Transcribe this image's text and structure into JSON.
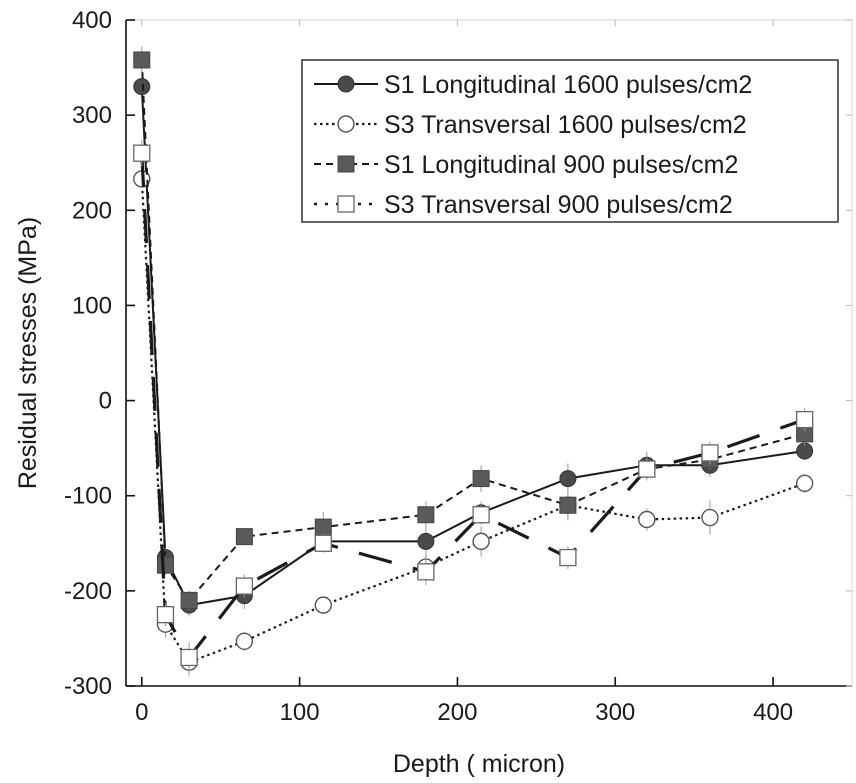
{
  "chart_data": {
    "type": "line",
    "title": "",
    "xlabel": "Depth ( micron)",
    "ylabel": "Residual stresses (MPa)",
    "xlim": [
      -10,
      450
    ],
    "ylim": [
      -300,
      400
    ],
    "xticks": [
      0,
      100,
      200,
      300,
      400
    ],
    "yticks": [
      400,
      300,
      200,
      100,
      0,
      -100,
      -200,
      -300
    ],
    "xtick_labels": [
      "0",
      "100",
      "200",
      "300",
      "400"
    ],
    "ytick_labels": [
      "400",
      "300",
      "200",
      "100",
      "0",
      "-100",
      "-200",
      "-300"
    ],
    "grid": false,
    "legend_position": "top-right",
    "series": [
      {
        "name": "S1 Longitudinal 1600 pulses/cm2",
        "marker": "filled-circle",
        "line_style": "solid",
        "x": [
          0,
          15,
          30,
          65,
          115,
          180,
          215,
          270,
          320,
          360,
          420
        ],
        "y": [
          330,
          -165,
          -215,
          -205,
          -148,
          -148,
          -118,
          -82,
          -68,
          -68,
          -53
        ],
        "err": [
          6,
          10,
          12,
          14,
          10,
          18,
          12,
          16,
          14,
          12,
          10
        ]
      },
      {
        "name": "S3 Transversal  1600 pulses/cm2",
        "marker": "open-circle",
        "line_style": "dotted",
        "x": [
          0,
          15,
          30,
          65,
          115,
          180,
          215,
          270,
          320,
          360,
          420
        ],
        "y": [
          233,
          -235,
          -275,
          -253,
          -215,
          -175,
          -148,
          -110,
          -125,
          -123,
          -87
        ],
        "err": [
          8,
          14,
          14,
          10,
          8,
          12,
          16,
          14,
          12,
          18,
          10
        ]
      },
      {
        "name": "S1 Longitudinal 900 pulses/cm2",
        "marker": "filled-square",
        "line_style": "dashed",
        "x": [
          0,
          15,
          30,
          65,
          115,
          180,
          215,
          270,
          320,
          360,
          420
        ],
        "y": [
          358,
          -173,
          -210,
          -143,
          -133,
          -120,
          -82,
          -110,
          -72,
          -62,
          -35
        ],
        "err": [
          14,
          10,
          10,
          8,
          16,
          14,
          14,
          16,
          12,
          10,
          12
        ]
      },
      {
        "name": "S3 Transversal 900 pulses/cm2",
        "marker": "open-square",
        "line_style": "long-dash",
        "x": [
          0,
          15,
          30,
          65,
          115,
          180,
          215,
          270,
          320,
          360,
          420
        ],
        "y": [
          260,
          -225,
          -270,
          -195,
          -150,
          -180,
          -120,
          -165,
          -72,
          -55,
          -20
        ],
        "err": [
          14,
          12,
          16,
          12,
          10,
          14,
          10,
          12,
          10,
          12,
          12
        ]
      }
    ]
  }
}
